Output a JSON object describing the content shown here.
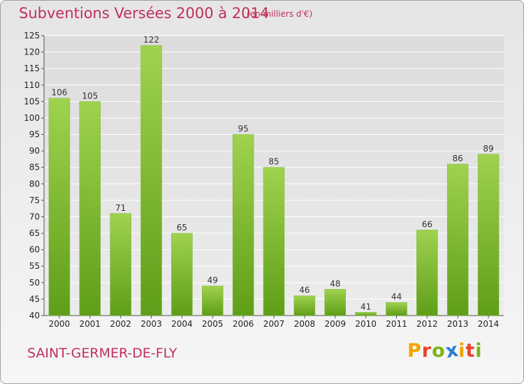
{
  "header": {
    "title": "Subventions Versées 2000 à 2014",
    "subtitle": "(en milliers d'€)"
  },
  "footer": {
    "commune": "SAINT-GERMER-DE-FLY",
    "logo_letters": [
      "P",
      "r",
      "o",
      "x",
      "i",
      "t",
      "i"
    ],
    "logo_colors": [
      "#f4a300",
      "#e8452c",
      "#7cb518",
      "#2b7cd3",
      "#f4a300",
      "#e8452c",
      "#7cb518"
    ]
  },
  "chart_data": {
    "type": "bar",
    "title": "Subventions Versées 2000 à 2014",
    "subtitle": "(en milliers d'€)",
    "xlabel": "",
    "ylabel": "",
    "categories": [
      "2000",
      "2001",
      "2002",
      "2003",
      "2004",
      "2005",
      "2006",
      "2007",
      "2008",
      "2009",
      "2010",
      "2011",
      "2012",
      "2013",
      "2014"
    ],
    "values": [
      106,
      105,
      71,
      122,
      65,
      49,
      95,
      85,
      46,
      48,
      41,
      44,
      66,
      86,
      89
    ],
    "ylim": [
      40,
      125
    ],
    "yticks": [
      40,
      45,
      50,
      55,
      60,
      65,
      70,
      75,
      80,
      85,
      90,
      95,
      100,
      105,
      110,
      115,
      120,
      125
    ],
    "grid": true,
    "bar_color": "#8cc63f",
    "legend": "none"
  }
}
